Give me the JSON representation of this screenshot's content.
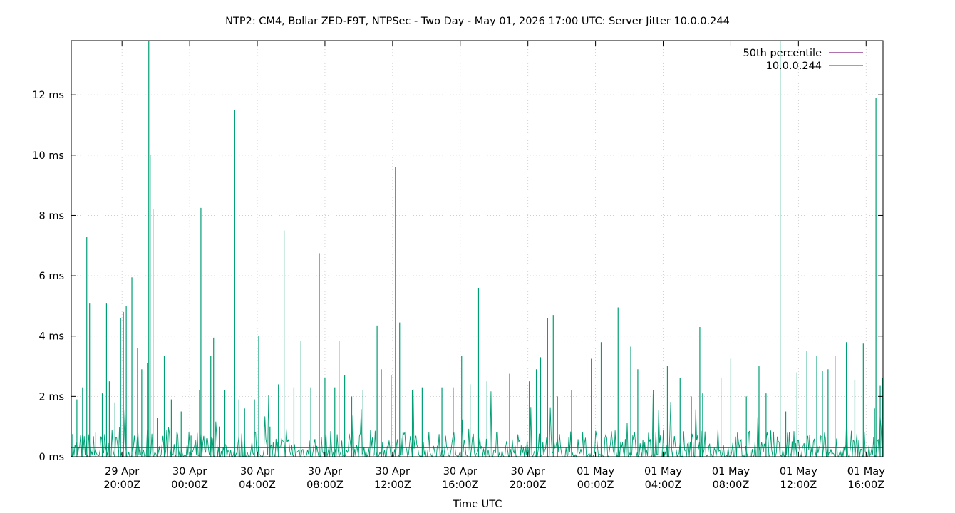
{
  "chart_data": {
    "type": "line",
    "title": "NTP2: CM4, Bollar ZED-F9T, NTPSec - Two Day - May 01, 2026 17:00 UTC: Server Jitter 10.0.0.244",
    "xlabel": "Time UTC",
    "ylabel": "",
    "y_unit": "ms",
    "ylim": [
      0,
      13.8
    ],
    "yticks": [
      {
        "value": 0,
        "label": "0 ms"
      },
      {
        "value": 2,
        "label": "2 ms"
      },
      {
        "value": 4,
        "label": "4 ms"
      },
      {
        "value": 6,
        "label": "6 ms"
      },
      {
        "value": 8,
        "label": "8 ms"
      },
      {
        "value": 10,
        "label": "10 ms"
      },
      {
        "value": 12,
        "label": "12 ms"
      }
    ],
    "xlim": [
      "2026-04-29T17:00Z",
      "2026-05-01T17:00Z"
    ],
    "xticks": [
      {
        "value": "2026-04-29T20:00Z",
        "line1": "29 Apr",
        "line2": "20:00Z"
      },
      {
        "value": "2026-04-30T00:00Z",
        "line1": "30 Apr",
        "line2": "00:00Z"
      },
      {
        "value": "2026-04-30T04:00Z",
        "line1": "30 Apr",
        "line2": "04:00Z"
      },
      {
        "value": "2026-04-30T08:00Z",
        "line1": "30 Apr",
        "line2": "08:00Z"
      },
      {
        "value": "2026-04-30T12:00Z",
        "line1": "30 Apr",
        "line2": "12:00Z"
      },
      {
        "value": "2026-04-30T16:00Z",
        "line1": "30 Apr",
        "line2": "16:00Z"
      },
      {
        "value": "2026-04-30T20:00Z",
        "line1": "30 Apr",
        "line2": "20:00Z"
      },
      {
        "value": "2026-05-01T00:00Z",
        "line1": "01 May",
        "line2": "00:00Z"
      },
      {
        "value": "2026-05-01T04:00Z",
        "line1": "01 May",
        "line2": "04:00Z"
      },
      {
        "value": "2026-05-01T08:00Z",
        "line1": "01 May",
        "line2": "08:00Z"
      },
      {
        "value": "2026-05-01T12:00Z",
        "line1": "01 May",
        "line2": "12:00Z"
      },
      {
        "value": "2026-05-01T16:00Z",
        "line1": "01 May",
        "line2": "16:00Z"
      }
    ],
    "grid": true,
    "legend_position": "top-right",
    "series": [
      {
        "name": "50th percentile",
        "color": "#7d1f7d",
        "values": [
          0.3
        ]
      },
      {
        "name": "10.0.0.244",
        "color": "#009e73",
        "points": [
          {
            "x": "2026-04-29T17:05Z",
            "y": 0.75
          },
          {
            "x": "2026-04-29T17:20Z",
            "y": 1.9
          },
          {
            "x": "2026-04-29T17:40Z",
            "y": 2.3
          },
          {
            "x": "2026-04-29T17:55Z",
            "y": 7.3
          },
          {
            "x": "2026-04-29T18:05Z",
            "y": 5.1
          },
          {
            "x": "2026-04-29T18:25Z",
            "y": 0.8
          },
          {
            "x": "2026-04-29T18:50Z",
            "y": 2.1
          },
          {
            "x": "2026-04-29T19:05Z",
            "y": 5.1
          },
          {
            "x": "2026-04-29T19:15Z",
            "y": 2.5
          },
          {
            "x": "2026-04-29T19:35Z",
            "y": 1.8
          },
          {
            "x": "2026-04-29T19:55Z",
            "y": 4.6
          },
          {
            "x": "2026-04-29T20:05Z",
            "y": 4.8
          },
          {
            "x": "2026-04-29T20:15Z",
            "y": 5.0
          },
          {
            "x": "2026-04-29T20:35Z",
            "y": 5.95
          },
          {
            "x": "2026-04-29T20:55Z",
            "y": 3.6
          },
          {
            "x": "2026-04-29T21:10Z",
            "y": 2.9
          },
          {
            "x": "2026-04-29T21:30Z",
            "y": 3.1
          },
          {
            "x": "2026-04-29T21:35Z",
            "y": 13.8
          },
          {
            "x": "2026-04-29T21:40Z",
            "y": 10.0
          },
          {
            "x": "2026-04-29T21:50Z",
            "y": 8.2
          },
          {
            "x": "2026-04-29T22:05Z",
            "y": 1.3
          },
          {
            "x": "2026-04-29T22:30Z",
            "y": 3.35
          },
          {
            "x": "2026-04-29T22:55Z",
            "y": 1.9
          },
          {
            "x": "2026-04-29T23:30Z",
            "y": 1.5
          },
          {
            "x": "2026-04-30T00:05Z",
            "y": 0.7
          },
          {
            "x": "2026-04-30T00:35Z",
            "y": 2.2
          },
          {
            "x": "2026-04-30T00:40Z",
            "y": 8.25
          },
          {
            "x": "2026-04-30T01:15Z",
            "y": 3.35
          },
          {
            "x": "2026-04-30T01:25Z",
            "y": 3.95
          },
          {
            "x": "2026-04-30T01:45Z",
            "y": 1.0
          },
          {
            "x": "2026-04-30T02:05Z",
            "y": 2.2
          },
          {
            "x": "2026-04-30T02:40Z",
            "y": 11.5
          },
          {
            "x": "2026-04-30T02:55Z",
            "y": 1.9
          },
          {
            "x": "2026-04-30T03:15Z",
            "y": 1.6
          },
          {
            "x": "2026-04-30T03:50Z",
            "y": 1.9
          },
          {
            "x": "2026-04-30T04:05Z",
            "y": 4.0
          },
          {
            "x": "2026-04-30T04:45Z",
            "y": 1.0
          },
          {
            "x": "2026-04-30T05:15Z",
            "y": 2.4
          },
          {
            "x": "2026-04-30T05:35Z",
            "y": 7.5
          },
          {
            "x": "2026-04-30T06:10Z",
            "y": 2.3
          },
          {
            "x": "2026-04-30T06:35Z",
            "y": 3.85
          },
          {
            "x": "2026-04-30T07:10Z",
            "y": 2.3
          },
          {
            "x": "2026-04-30T07:40Z",
            "y": 6.75
          },
          {
            "x": "2026-04-30T08:00Z",
            "y": 2.6
          },
          {
            "x": "2026-04-30T08:35Z",
            "y": 2.3
          },
          {
            "x": "2026-04-30T08:50Z",
            "y": 3.85
          },
          {
            "x": "2026-04-30T09:10Z",
            "y": 2.7
          },
          {
            "x": "2026-04-30T09:35Z",
            "y": 2.0
          },
          {
            "x": "2026-04-30T10:15Z",
            "y": 2.2
          },
          {
            "x": "2026-04-30T11:05Z",
            "y": 4.35
          },
          {
            "x": "2026-04-30T11:20Z",
            "y": 2.9
          },
          {
            "x": "2026-04-30T11:55Z",
            "y": 2.7
          },
          {
            "x": "2026-04-30T12:10Z",
            "y": 9.6
          },
          {
            "x": "2026-04-30T12:25Z",
            "y": 4.45
          },
          {
            "x": "2026-04-30T13:10Z",
            "y": 2.2
          },
          {
            "x": "2026-04-30T13:45Z",
            "y": 2.3
          },
          {
            "x": "2026-04-30T14:55Z",
            "y": 2.3
          },
          {
            "x": "2026-04-30T15:35Z",
            "y": 2.3
          },
          {
            "x": "2026-04-30T16:05Z",
            "y": 3.35
          },
          {
            "x": "2026-04-30T16:35Z",
            "y": 2.4
          },
          {
            "x": "2026-04-30T17:05Z",
            "y": 5.6
          },
          {
            "x": "2026-04-30T17:35Z",
            "y": 2.5
          },
          {
            "x": "2026-04-30T18:55Z",
            "y": 2.75
          },
          {
            "x": "2026-04-30T20:05Z",
            "y": 2.5
          },
          {
            "x": "2026-04-30T20:30Z",
            "y": 2.9
          },
          {
            "x": "2026-04-30T20:45Z",
            "y": 3.3
          },
          {
            "x": "2026-04-30T21:10Z",
            "y": 4.6
          },
          {
            "x": "2026-04-30T21:30Z",
            "y": 4.7
          },
          {
            "x": "2026-04-30T21:45Z",
            "y": 2.0
          },
          {
            "x": "2026-04-30T22:35Z",
            "y": 2.2
          },
          {
            "x": "2026-04-30T23:45Z",
            "y": 3.25
          },
          {
            "x": "2026-05-01T00:20Z",
            "y": 3.8
          },
          {
            "x": "2026-05-01T01:20Z",
            "y": 4.95
          },
          {
            "x": "2026-05-01T02:05Z",
            "y": 3.65
          },
          {
            "x": "2026-05-01T02:30Z",
            "y": 2.9
          },
          {
            "x": "2026-05-01T03:25Z",
            "y": 2.2
          },
          {
            "x": "2026-05-01T04:15Z",
            "y": 3.0
          },
          {
            "x": "2026-05-01T05:00Z",
            "y": 2.6
          },
          {
            "x": "2026-05-01T05:40Z",
            "y": 2.0
          },
          {
            "x": "2026-05-01T06:10Z",
            "y": 4.3
          },
          {
            "x": "2026-05-01T06:20Z",
            "y": 2.1
          },
          {
            "x": "2026-05-01T07:25Z",
            "y": 2.6
          },
          {
            "x": "2026-05-01T08:00Z",
            "y": 3.25
          },
          {
            "x": "2026-05-01T08:55Z",
            "y": 2.0
          },
          {
            "x": "2026-05-01T09:40Z",
            "y": 3.0
          },
          {
            "x": "2026-05-01T10:05Z",
            "y": 2.1
          },
          {
            "x": "2026-05-01T10:55Z",
            "y": 13.8
          },
          {
            "x": "2026-05-01T11:15Z",
            "y": 1.5
          },
          {
            "x": "2026-05-01T11:55Z",
            "y": 2.8
          },
          {
            "x": "2026-05-01T12:30Z",
            "y": 3.5
          },
          {
            "x": "2026-05-01T13:05Z",
            "y": 3.35
          },
          {
            "x": "2026-05-01T13:25Z",
            "y": 2.85
          },
          {
            "x": "2026-05-01T13:45Z",
            "y": 2.9
          },
          {
            "x": "2026-05-01T14:10Z",
            "y": 3.35
          },
          {
            "x": "2026-05-01T14:50Z",
            "y": 3.8
          },
          {
            "x": "2026-05-01T15:20Z",
            "y": 2.55
          },
          {
            "x": "2026-05-01T15:50Z",
            "y": 3.75
          },
          {
            "x": "2026-05-01T16:30Z",
            "y": 1.6
          },
          {
            "x": "2026-05-01T16:35Z",
            "y": 11.9
          },
          {
            "x": "2026-05-01T16:50Z",
            "y": 2.35
          },
          {
            "x": "2026-05-01T16:58Z",
            "y": 2.6
          }
        ]
      }
    ]
  }
}
